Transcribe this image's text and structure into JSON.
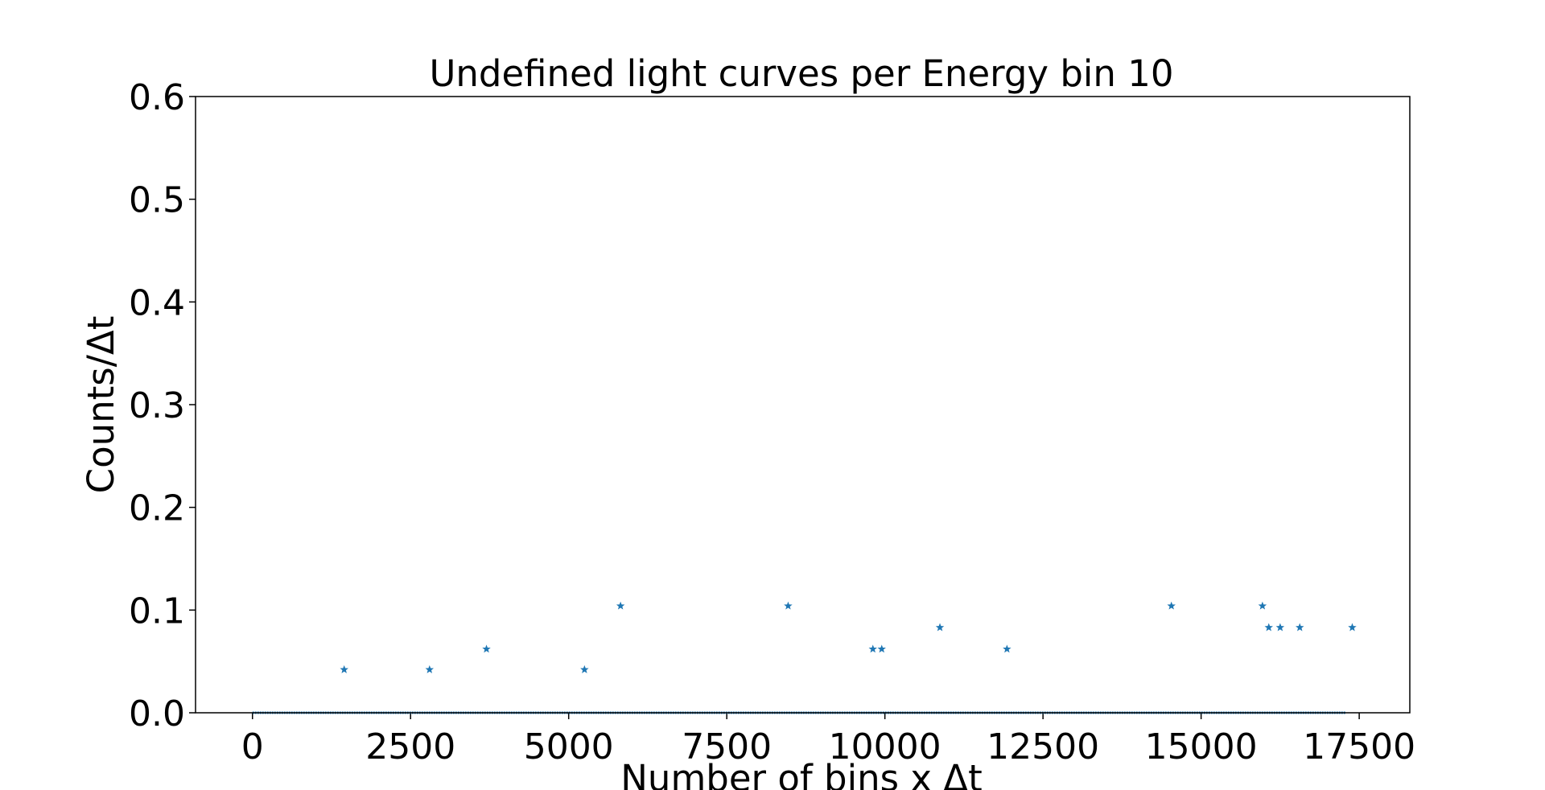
{
  "chart_data": {
    "type": "scatter",
    "title": "Undefined light curves per Energy bin 10",
    "xlabel": "Number of bins x Δt",
    "ylabel": "Counts/Δt",
    "xlim": [
      -900,
      18300
    ],
    "ylim": [
      0,
      0.6
    ],
    "xticks": [
      0,
      2500,
      5000,
      7500,
      10000,
      12500,
      15000,
      17500
    ],
    "xtick_labels": [
      "0",
      "2500",
      "5000",
      "7500",
      "10000",
      "12500",
      "15000",
      "17500"
    ],
    "yticks": [
      0.0,
      0.1,
      0.2,
      0.3,
      0.4,
      0.5,
      0.6
    ],
    "ytick_labels": [
      "0.0",
      "0.1",
      "0.2",
      "0.3",
      "0.4",
      "0.5",
      "0.6"
    ],
    "grid": false,
    "marker": "star",
    "color": "#1f77b4",
    "zero_baseline": {
      "x_start": 0,
      "x_end": 17280,
      "y": 0
    },
    "points": [
      {
        "x": 1450,
        "y": 0.042
      },
      {
        "x": 2800,
        "y": 0.042
      },
      {
        "x": 3700,
        "y": 0.062
      },
      {
        "x": 5250,
        "y": 0.042
      },
      {
        "x": 5820,
        "y": 0.104
      },
      {
        "x": 8470,
        "y": 0.104
      },
      {
        "x": 9810,
        "y": 0.062
      },
      {
        "x": 9950,
        "y": 0.062
      },
      {
        "x": 10870,
        "y": 0.083
      },
      {
        "x": 11930,
        "y": 0.062
      },
      {
        "x": 14530,
        "y": 0.104
      },
      {
        "x": 15970,
        "y": 0.104
      },
      {
        "x": 16070,
        "y": 0.083
      },
      {
        "x": 16250,
        "y": 0.083
      },
      {
        "x": 16560,
        "y": 0.083
      },
      {
        "x": 17390,
        "y": 0.083
      }
    ]
  }
}
